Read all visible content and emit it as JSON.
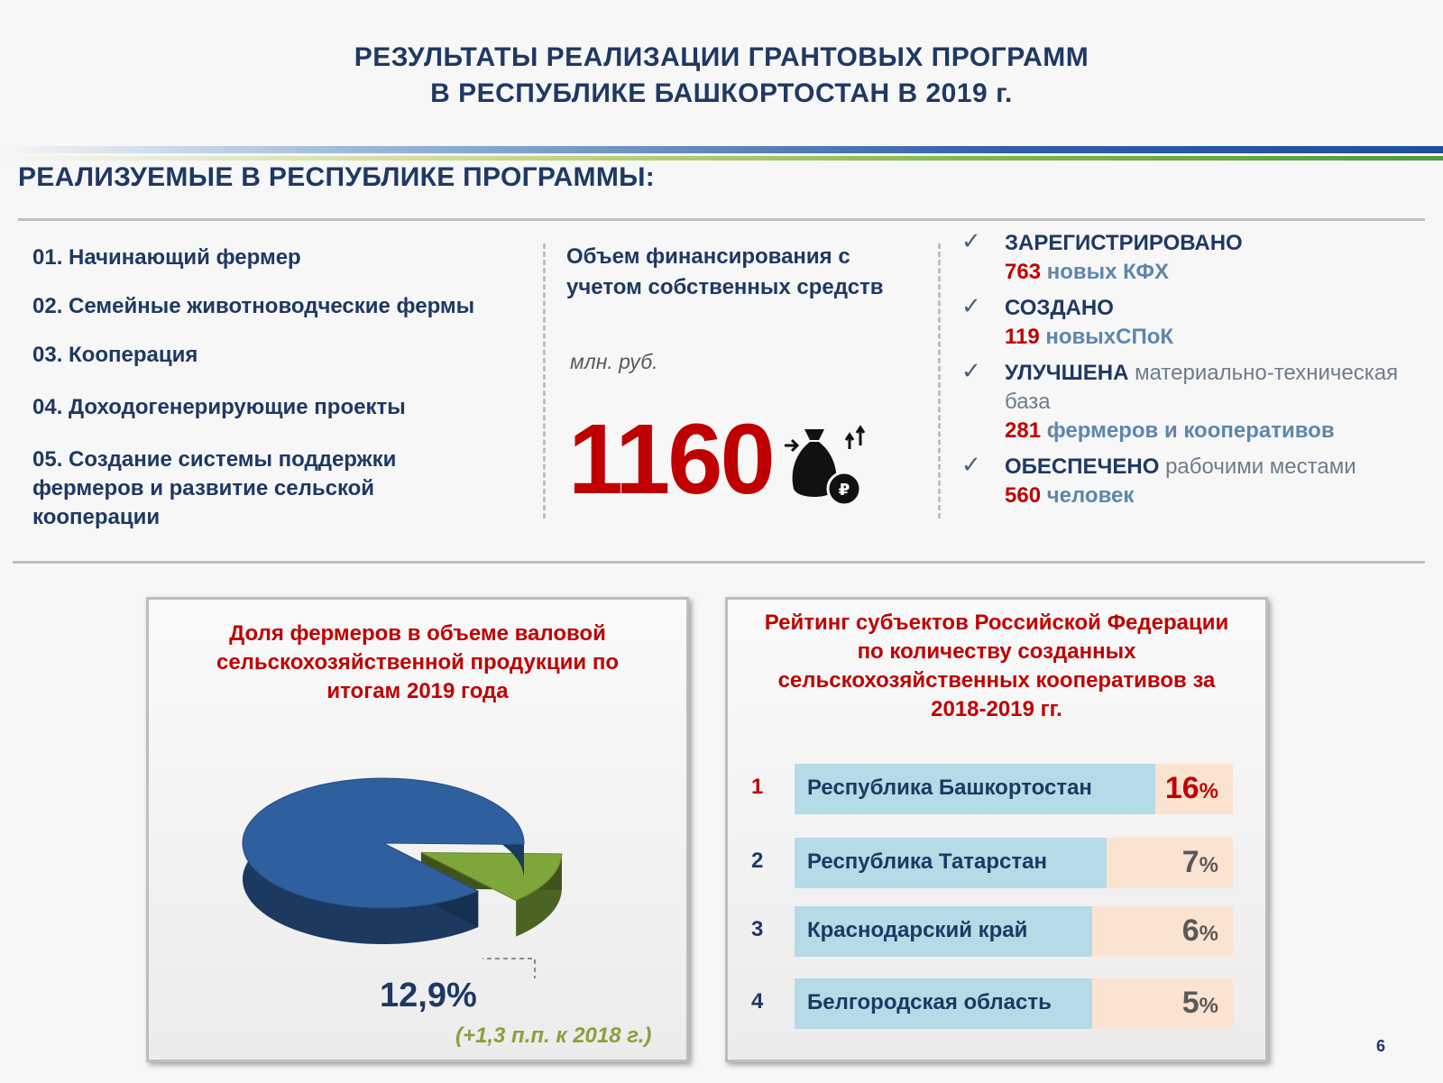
{
  "header": {
    "title_line1": "РЕЗУЛЬТАТЫ РЕАЛИЗАЦИИ ГРАНТОВЫХ ПРОГРАММ",
    "title_line2": "В РЕСПУБЛИКЕ БАШКОРТОСТАН В 2019 г."
  },
  "section": {
    "heading": "РЕАЛИЗУЕМЫЕ В РЕСПУБЛИКЕ ПРОГРАММЫ:"
  },
  "programs": [
    "01. Начинающий фермер",
    "02. Семейные животноводческие фермы",
    "03. Кооперация",
    "04. Доходогенерирующие проекты",
    "05. Создание системы поддержки фермеров и развитие сельской кооперации"
  ],
  "funding": {
    "label": "Объем финансирования с учетом собственных средств",
    "unit": "млн. руб.",
    "value": "1160",
    "icon": "money-bag-icon"
  },
  "achievements": [
    {
      "check": "✓",
      "head": "ЗАРЕГИСТРИРОВАНО",
      "rest": "",
      "number": "763",
      "text": "новых КФХ"
    },
    {
      "check": "✓",
      "head": "СОЗДАНО",
      "rest": "",
      "number": "119",
      "text": "новыхСПоК"
    },
    {
      "check": "✓",
      "head": "УЛУЧШЕНА",
      "rest": "материально-техническая база",
      "number": "281",
      "text": "фермеров и кооперативов"
    },
    {
      "check": "✓",
      "head": "ОБЕСПЕЧЕНО",
      "rest": "рабочими местами",
      "number": "560",
      "text": "человек"
    }
  ],
  "farmer_share": {
    "title": "Доля фермеров в объеме валовой сельскохозяйственной продукции по итогам 2019 года",
    "value_label": "12,9%",
    "note": "(+1,3 п.п. к 2018 г.)"
  },
  "rating": {
    "title": "Рейтинг субъектов Российской Федерации по количеству созданных сельскохозяйственных кооперативов за 2018-2019 гг.",
    "rows": [
      {
        "rank": "1",
        "name": "Республика Башкортостан",
        "value": "16",
        "unit": "%"
      },
      {
        "rank": "2",
        "name": "Республика Татарстан",
        "value": "7",
        "unit": "%"
      },
      {
        "rank": "3",
        "name": "Краснодарский край",
        "value": "6",
        "unit": "%"
      },
      {
        "rank": "4",
        "name": "Белгородская область",
        "value": "5",
        "unit": "%"
      }
    ]
  },
  "page_number": "6",
  "colors": {
    "navy": "#1f3864",
    "red": "#c00000",
    "pie_blue": "#2e5f9e",
    "pie_green": "#7fa63a",
    "bar_blue": "#b4dbe6",
    "bar_peach": "#fbe3d1"
  },
  "chart_data": [
    {
      "type": "pie",
      "title": "Доля фермеров в объеме валовой сельскохозяйственной продукции по итогам 2019 года",
      "slices": [
        {
          "label": "12,9%",
          "value": 12.9,
          "color": "#7fa63a"
        },
        {
          "label": "",
          "value": 87.1,
          "color": "#2e5f9e"
        }
      ]
    },
    {
      "type": "bar",
      "title": "Рейтинг субъектов Российской Федерации по количеству созданных сельскохозяйственных кооперативов за 2018-2019 гг.",
      "categories": [
        "Республика Башкортостан",
        "Республика Татарстан",
        "Краснодарский край",
        "Белгородская область"
      ],
      "values": [
        16,
        7,
        6,
        5
      ]
    }
  ]
}
